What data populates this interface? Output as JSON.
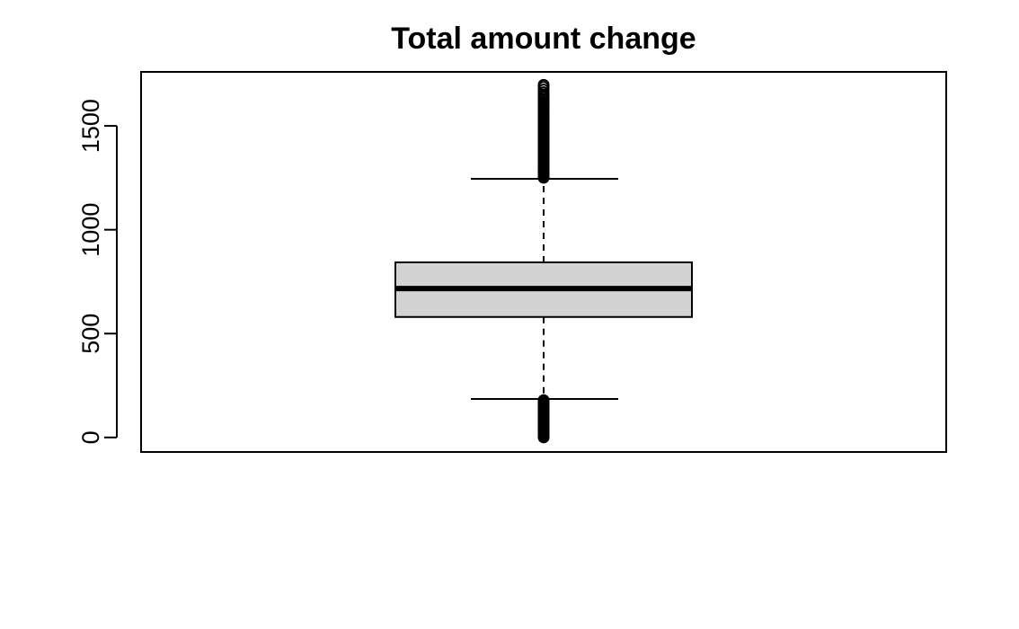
{
  "chart_data": {
    "type": "boxplot",
    "title": "Total amount change",
    "xlabel": "",
    "ylabel": "",
    "ylim": [
      -70,
      1760
    ],
    "y_ticks": [
      0,
      500,
      1000,
      1500
    ],
    "y_tick_labels": [
      "0",
      "500",
      "1000",
      "1500"
    ],
    "grid": false,
    "legend": "none",
    "box_fill": "#d3d3d3",
    "line_color": "#000000",
    "box": {
      "min_whisker": 185,
      "q1": 580,
      "median": 717,
      "q3": 843,
      "max_whisker": 1245
    },
    "outliers": [
      0,
      8,
      16,
      24,
      32,
      40,
      48,
      56,
      64,
      72,
      80,
      88,
      96,
      104,
      112,
      120,
      128,
      136,
      144,
      152,
      160,
      168,
      176,
      180,
      1250,
      1258,
      1266,
      1274,
      1282,
      1290,
      1300,
      1310,
      1320,
      1330,
      1340,
      1350,
      1360,
      1370,
      1380,
      1390,
      1400,
      1410,
      1420,
      1430,
      1440,
      1450,
      1460,
      1470,
      1480,
      1490,
      1500,
      1510,
      1520,
      1530,
      1540,
      1550,
      1560,
      1570,
      1580,
      1590,
      1600,
      1610,
      1620,
      1630,
      1640,
      1650,
      1662,
      1675,
      1688,
      1698
    ]
  }
}
